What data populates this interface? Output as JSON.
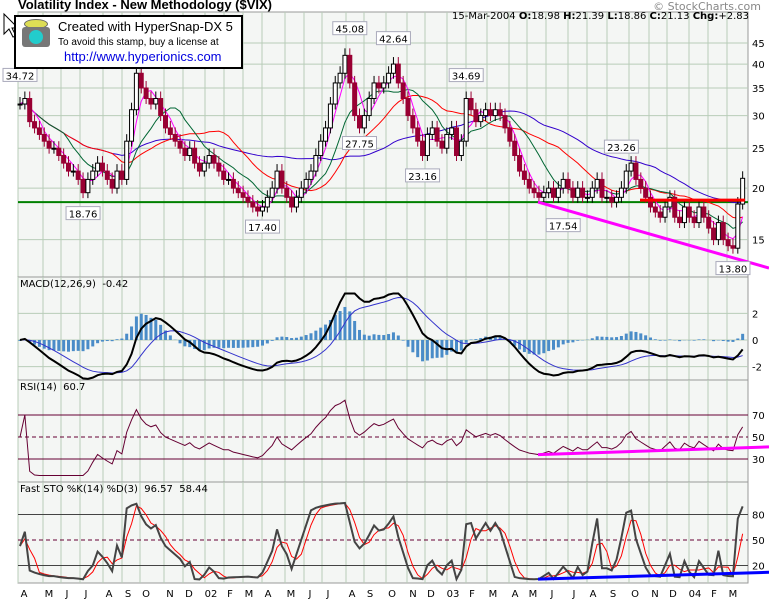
{
  "header": {
    "title": "Volatility Index - New Methodology ($VIX)",
    "copyright": "© StockCharts.com",
    "date": "15-Mar-2004",
    "open_label": "O:",
    "open": "18.98",
    "high_label": "H:",
    "high": "21.39",
    "low_label": "L:",
    "low": "18.86",
    "close_label": "C:",
    "close": "21.13",
    "chg_label": "Chg:",
    "chg": "+2.83"
  },
  "stamp": {
    "line1": "Created with HyperSnap-DX 5",
    "line2": "To avoid this stamp, buy a license at",
    "line3": "http://www.hyperionics.com"
  },
  "colors": {
    "up": "#000000",
    "down": "#990033",
    "ma_fast": "#ff00ff",
    "ma_mid": "#006633",
    "ma_slow": "#ff0000",
    "ma_long": "#3300cc",
    "support": "#008000",
    "trendline": "#ff00ff",
    "sto_trend": "#0000ff",
    "grid": "#b8ccb8",
    "bg": "#f4f6f4"
  },
  "chart_data": [
    {
      "type": "candlestick",
      "name": "price",
      "scale": "log",
      "ylim": [
        13,
        47
      ],
      "yticks": [
        15,
        20,
        25,
        30,
        35,
        40,
        45
      ],
      "x_ticks": [
        "A",
        "M",
        "J",
        "J",
        "A",
        "S",
        "O",
        "N",
        "D",
        "02",
        "F",
        "M",
        "A",
        "M",
        "J",
        "J",
        "A",
        "S",
        "O",
        "N",
        "D",
        "03",
        "F",
        "M",
        "A",
        "M",
        "J",
        "J",
        "A",
        "S",
        "O",
        "N",
        "D",
        "04",
        "F",
        "M"
      ],
      "period": "weekly, Apr 2001 - Mar 2004",
      "close": [
        32,
        33,
        29,
        28,
        27,
        26,
        25,
        25,
        24,
        23,
        22,
        22,
        21,
        19.5,
        21,
        22,
        23,
        22,
        21,
        20,
        22,
        21,
        26,
        31,
        38,
        35,
        33,
        32,
        33,
        30,
        28,
        27,
        26,
        25,
        24,
        25,
        23,
        22,
        23,
        24,
        23,
        22,
        21,
        21,
        20,
        19.5,
        19,
        18.5,
        18,
        17.6,
        18,
        19,
        20,
        22,
        20,
        19,
        18,
        19,
        20,
        21,
        22,
        24,
        26,
        28,
        32,
        36,
        38,
        42,
        36,
        30,
        28,
        30,
        33,
        36,
        35,
        36,
        38,
        40,
        36,
        33,
        30,
        28,
        26,
        24,
        27,
        28,
        26,
        25,
        27,
        28,
        24,
        26,
        33,
        31,
        29,
        30,
        31,
        30,
        31,
        30,
        28,
        26,
        24,
        22,
        21,
        20,
        19.5,
        19,
        19.5,
        20,
        19,
        20,
        21,
        20,
        19,
        20,
        19,
        19,
        20,
        21,
        19,
        19,
        18.5,
        19,
        20,
        22,
        23,
        21,
        20,
        19,
        18,
        17.5,
        17,
        18,
        19,
        17,
        16.5,
        18,
        17,
        16.5,
        18,
        17,
        16,
        15,
        16.5,
        15,
        14.5,
        14.3,
        18.3,
        21.13
      ],
      "annotations": [
        "34.72",
        "18.76",
        "45.08",
        "27.75",
        "17.40",
        "42.64",
        "23.16",
        "34.69",
        "23.26",
        "17.54",
        "13.80"
      ],
      "support_level": 18.5,
      "trendline": [
        18.5,
        12.8
      ]
    },
    {
      "type": "line",
      "name": "macd",
      "label": "MACD(12,26,9)",
      "value": "-0.42",
      "yticks": [
        2,
        0,
        -2
      ],
      "ylim": [
        -3.5,
        4.5
      ]
    },
    {
      "type": "line",
      "name": "rsi",
      "label": "RSI(14)",
      "value": "60.7",
      "yticks": [
        70,
        50,
        30
      ],
      "ylim": [
        10,
        90
      ],
      "trendline": [
        34,
        41
      ]
    },
    {
      "type": "line",
      "name": "fast-sto",
      "label": "Fast STO %K(14) %D(3)",
      "k": "96.57",
      "d": "58.44",
      "yticks": [
        80,
        50,
        20
      ],
      "ylim": [
        -20,
        110
      ],
      "trendline": [
        4,
        12
      ]
    }
  ]
}
